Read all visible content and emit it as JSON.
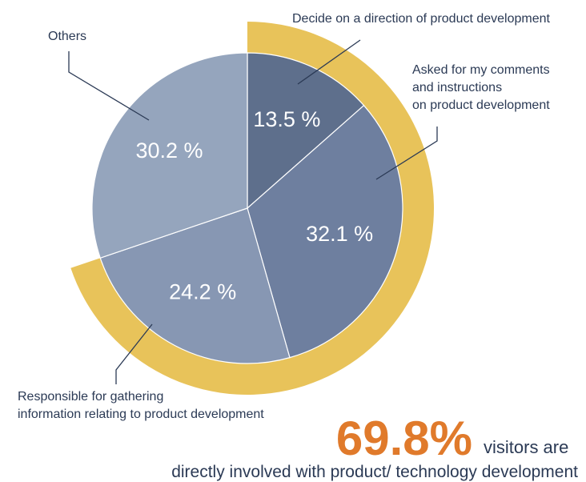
{
  "chart_data": {
    "type": "pie",
    "categories": [
      [
        "Decide on a direction of product development"
      ],
      [
        "Asked for my comments",
        "and instructions",
        "on product development"
      ],
      [
        "Responsible for gathering",
        "information relating to product development"
      ],
      [
        "Others"
      ]
    ],
    "values": [
      13.5,
      32.1,
      24.2,
      30.2
    ],
    "value_labels": [
      "13.5 %",
      "32.1 %",
      "24.2 %",
      "30.2 %"
    ],
    "colors": [
      "#5e6f8c",
      "#6e7f9f",
      "#8797b3",
      "#95a5bd"
    ],
    "highlight": {
      "value": 69.8,
      "label": "69.8%",
      "color": "#e8c35a"
    },
    "annotation": {
      "text": "visitors are",
      "subtext": "directly involved with product/ technology development",
      "color": "#e07a2b"
    }
  }
}
